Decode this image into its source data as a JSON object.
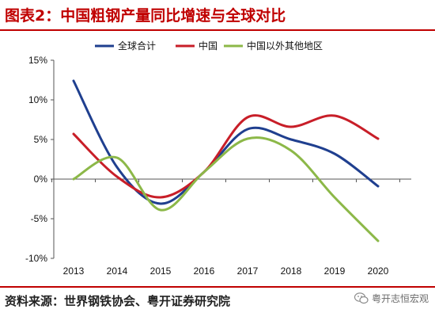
{
  "header": {
    "title": "图表2：中国粗钢产量同比增速与全球对比"
  },
  "footer": {
    "source": "资料来源：世界钢铁协会、粤开证券研究院"
  },
  "watermark": {
    "text": "粤开志恒宏观"
  },
  "colors": {
    "accent": "#c00000",
    "global": "#1f3f8f",
    "china": "#c81e28",
    "other": "#8cb848"
  },
  "chart_data": {
    "type": "line",
    "title": "图表2：中国粗钢产量同比增速与全球对比",
    "xlabel": "",
    "ylabel": "",
    "x": [
      "2013",
      "2014",
      "2015",
      "2016",
      "2017",
      "2018",
      "2019",
      "2020"
    ],
    "ylim": [
      -10,
      15
    ],
    "yticks": [
      "15%",
      "10%",
      "5%",
      "0%",
      "-5%",
      "-10%"
    ],
    "ytick_values": [
      15,
      10,
      5,
      0,
      -5,
      -10
    ],
    "legend_position": "top",
    "grid": false,
    "series": [
      {
        "name": "全球合计",
        "color": "#1f3f8f",
        "values": [
          12.4,
          1.5,
          -3.1,
          0.9,
          6.3,
          5.0,
          3.2,
          -0.9
        ]
      },
      {
        "name": "中国",
        "color": "#c81e28",
        "values": [
          5.7,
          0.3,
          -2.3,
          0.9,
          7.8,
          6.6,
          8.0,
          5.1
        ]
      },
      {
        "name": "中国以外其他地区",
        "color": "#8cb848",
        "values": [
          0.0,
          2.7,
          -3.9,
          0.9,
          5.1,
          3.6,
          -2.3,
          -7.8
        ]
      }
    ]
  }
}
